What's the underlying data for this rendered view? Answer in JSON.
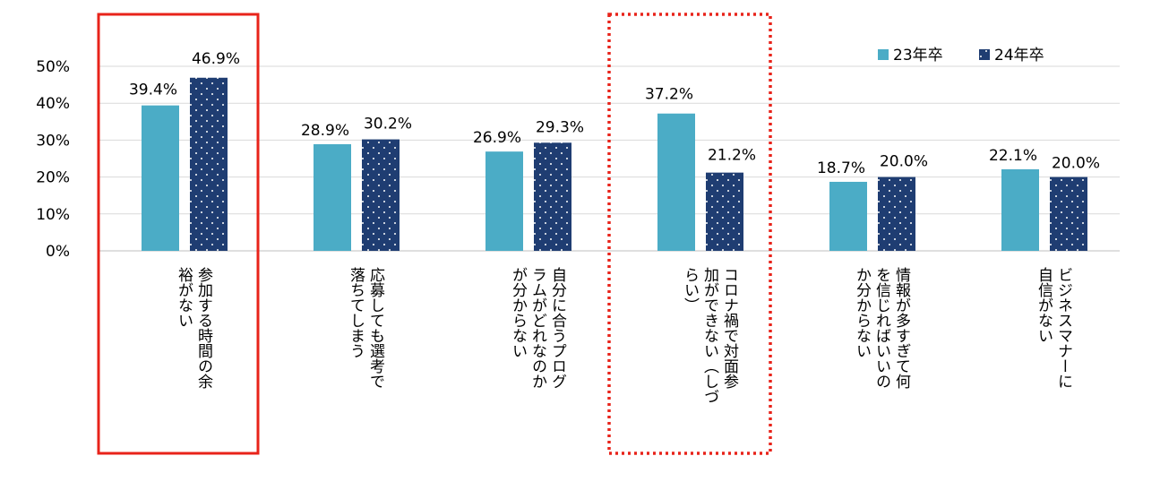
{
  "chart_data": {
    "type": "bar",
    "categories": [
      [
        "参加する時間の余",
        "裕がない"
      ],
      [
        "応募しても選考で",
        "落ちてしまう"
      ],
      [
        "自分に合うプログ",
        "ラムがどれなのか",
        "が分からない"
      ],
      [
        "コロナ禍で対面参",
        "加ができない（しづ",
        "らい）"
      ],
      [
        "情報が多すぎて何",
        "を信じればいいの",
        "か分からない"
      ],
      [
        "ビジネスマナーに",
        "自信がない"
      ]
    ],
    "series": [
      {
        "name": "23年卒",
        "values": [
          39.4,
          28.9,
          26.9,
          37.2,
          18.7,
          22.1
        ],
        "labels": [
          "39.4%",
          "28.9%",
          "26.9%",
          "37.2%",
          "18.7%",
          "22.1%"
        ],
        "color": "#4bacc6",
        "pattern": "solid"
      },
      {
        "name": "24年卒",
        "values": [
          46.9,
          30.2,
          29.3,
          21.2,
          20.0,
          20.0
        ],
        "labels": [
          "46.9%",
          "30.2%",
          "29.3%",
          "21.2%",
          "20.0%",
          "20.0%"
        ],
        "color": "#1f3d72",
        "pattern": "dots"
      }
    ],
    "ylim": [
      0,
      50
    ],
    "yticks": [
      "0%",
      "10%",
      "20%",
      "30%",
      "40%",
      "50%"
    ],
    "grid": true,
    "legend_position": "top-right",
    "highlights": [
      {
        "category_index": 0,
        "style": "solid",
        "color": "#e8231a"
      },
      {
        "category_index": 3,
        "style": "dotted",
        "color": "#e8231a"
      }
    ]
  }
}
